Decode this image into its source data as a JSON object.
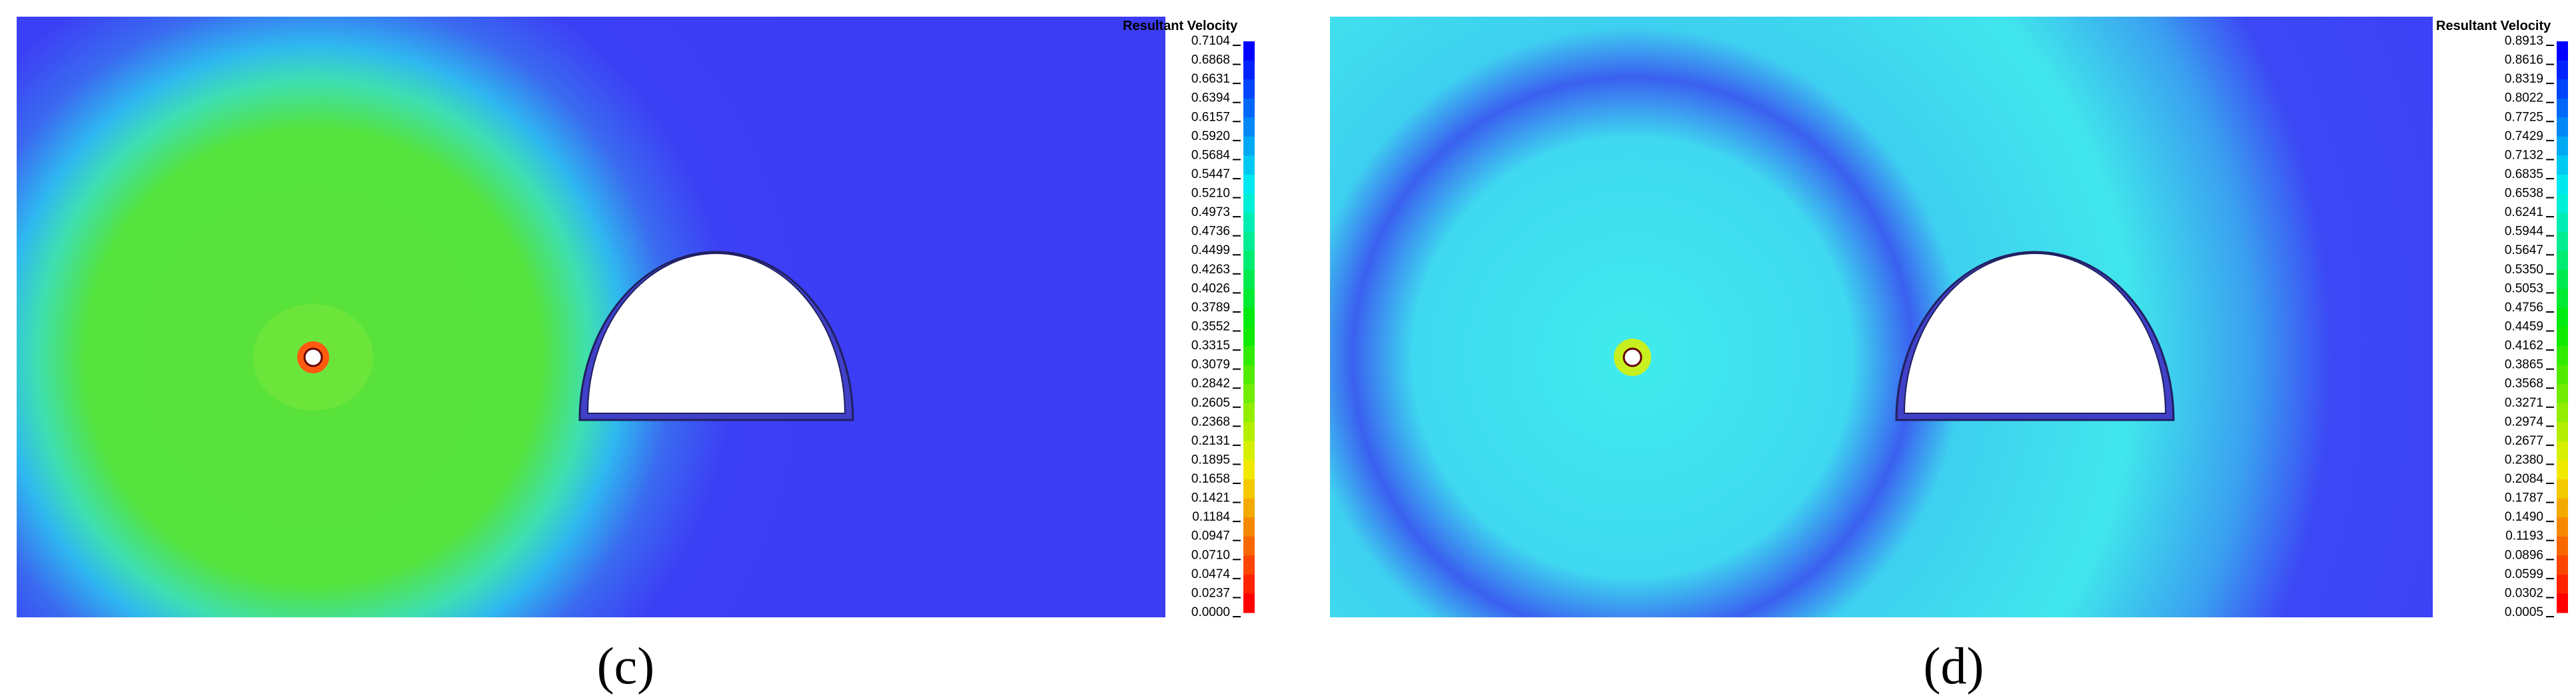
{
  "panels": [
    {
      "label": "(c)",
      "colorbar": {
        "title": "Resultant Velocity",
        "ticks": [
          "0.7104",
          "0.6868",
          "0.6631",
          "0.6394",
          "0.6157",
          "0.5920",
          "0.5684",
          "0.5447",
          "0.5210",
          "0.4973",
          "0.4736",
          "0.4499",
          "0.4263",
          "0.4026",
          "0.3789",
          "0.3552",
          "0.3315",
          "0.3079",
          "0.2842",
          "0.2605",
          "0.2368",
          "0.2131",
          "0.1895",
          "0.1658",
          "0.1421",
          "0.1184",
          "0.0947",
          "0.0710",
          "0.0474",
          "0.0237",
          "0.0000"
        ]
      }
    },
    {
      "label": "(d)",
      "colorbar": {
        "title": "Resultant Velocity",
        "ticks": [
          "0.8913",
          "0.8616",
          "0.8319",
          "0.8022",
          "0.7725",
          "0.7429",
          "0.7132",
          "0.6835",
          "0.6538",
          "0.6241",
          "0.5944",
          "0.5647",
          "0.5350",
          "0.5053",
          "0.4756",
          "0.4459",
          "0.4162",
          "0.3865",
          "0.3568",
          "0.3271",
          "0.2974",
          "0.2677",
          "0.2380",
          "0.2084",
          "0.1787",
          "0.1490",
          "0.1193",
          "0.0896",
          "0.0599",
          "0.0302",
          "0.0005"
        ]
      }
    }
  ]
}
